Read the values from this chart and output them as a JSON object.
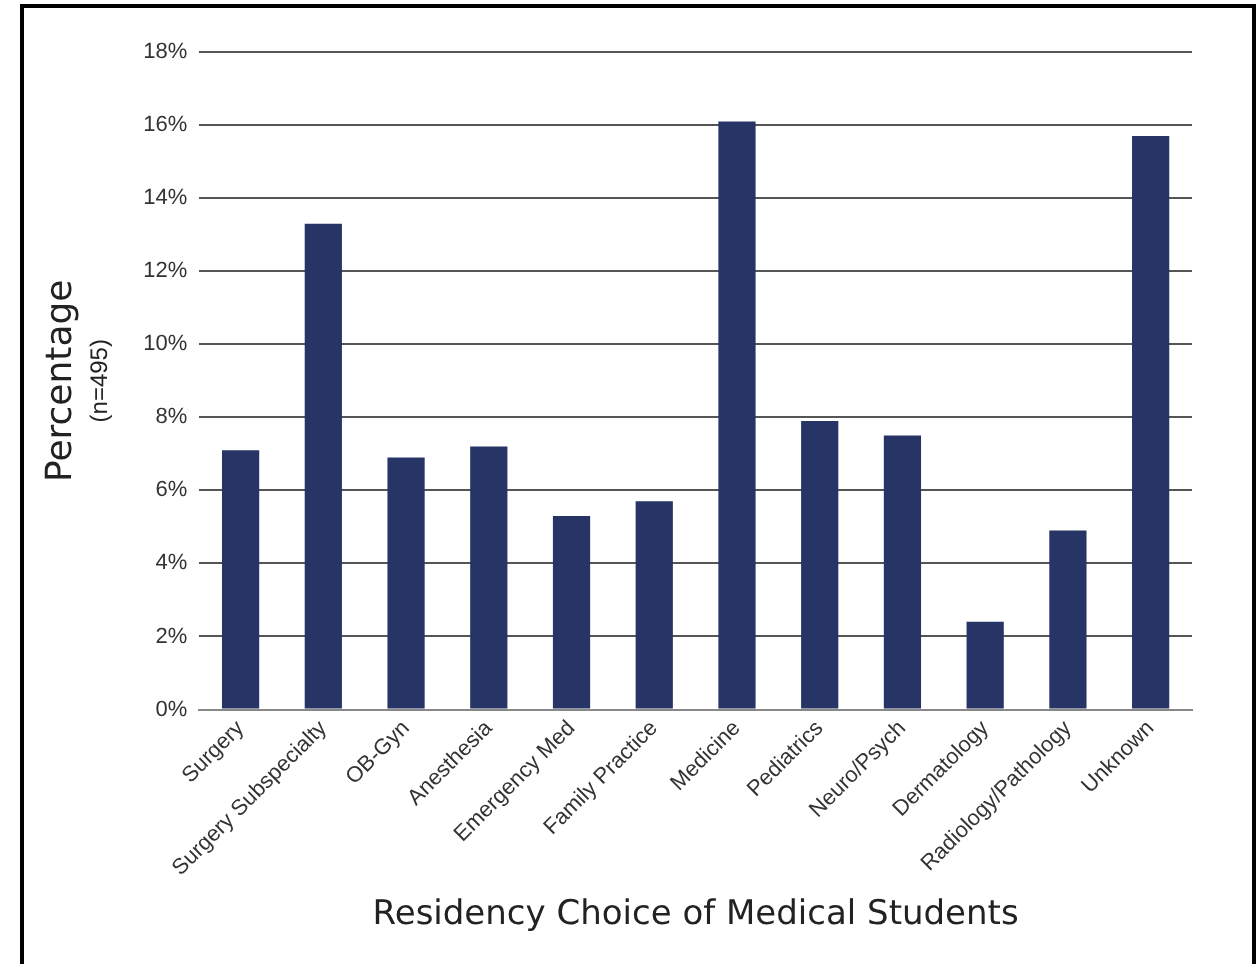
{
  "chart_data": {
    "type": "bar",
    "xlabel": "Residency Choice of Medical Students",
    "ylabel": "Percentage",
    "annotations": [
      "(n=495)"
    ],
    "categories": [
      "Surgery",
      "Surgery Subspecialty",
      "OB-Gyn",
      "Anesthesia",
      "Emergency Med",
      "Family Practice",
      "Medicine",
      "Pediatrics",
      "Neuro/Psych",
      "Dermatology",
      "Radiology/Pathology",
      "Unknown"
    ],
    "values": [
      7.1,
      13.3,
      6.9,
      7.2,
      5.3,
      5.7,
      16.1,
      7.9,
      7.5,
      2.4,
      4.9,
      15.7
    ],
    "color": "#263566",
    "ylim": [
      0,
      18
    ],
    "yticks": [
      {
        "value": 0,
        "label": "0%"
      },
      {
        "value": 2,
        "label": "2%"
      },
      {
        "value": 4,
        "label": "4%"
      },
      {
        "value": 6,
        "label": "6%"
      },
      {
        "value": 8,
        "label": "8%"
      },
      {
        "value": 10,
        "label": "10%"
      },
      {
        "value": 12,
        "label": "12%"
      },
      {
        "value": 14,
        "label": "14%"
      },
      {
        "value": 16,
        "label": "16%"
      },
      {
        "value": 18,
        "label": "18%"
      }
    ],
    "grid": "y",
    "legend": false
  }
}
